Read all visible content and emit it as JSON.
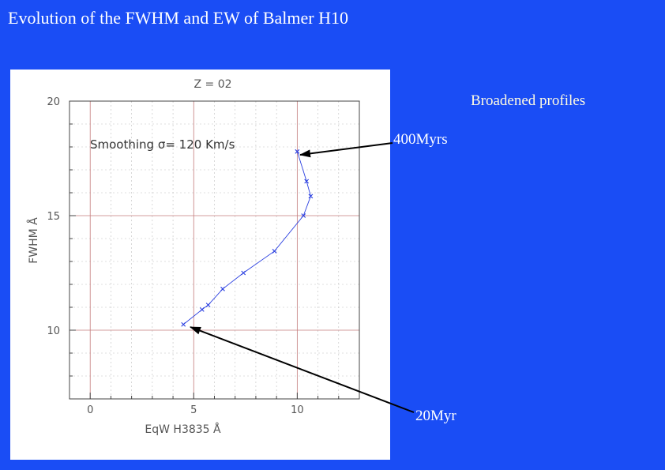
{
  "slide": {
    "title": "Evolution of the FWHM and EW of Balmer H10",
    "broadened_label": "Broadened  profiles",
    "annotation_400": "400Myrs",
    "annotation_20": "20Myr"
  },
  "chart_data": {
    "type": "line",
    "title": "Z = 02",
    "annotation": "Smoothing σ= 120 Km/s",
    "xlabel": "EqW H3835 Å",
    "ylabel": "FWHM Å",
    "xlim": [
      -1,
      13
    ],
    "ylim": [
      7,
      20
    ],
    "xticks": [
      0,
      5,
      10
    ],
    "yticks": [
      10,
      15,
      20
    ],
    "xtick_labels": [
      "0",
      "5",
      "10"
    ],
    "ytick_labels": [
      "10",
      "15",
      "20"
    ],
    "grid": true,
    "series": [
      {
        "x": [
          4.5,
          5.4,
          5.7,
          6.4,
          7.4,
          8.9,
          10.3,
          10.65,
          10.45,
          10.0
        ],
        "y": [
          10.25,
          10.9,
          11.1,
          11.8,
          12.5,
          13.45,
          15.0,
          15.85,
          16.5,
          17.8
        ]
      }
    ],
    "colors": {
      "line": "#2a3fe0",
      "grid_minor": "#bfbfbf",
      "grid_major": "#c47c7c",
      "text": "#555555"
    }
  }
}
